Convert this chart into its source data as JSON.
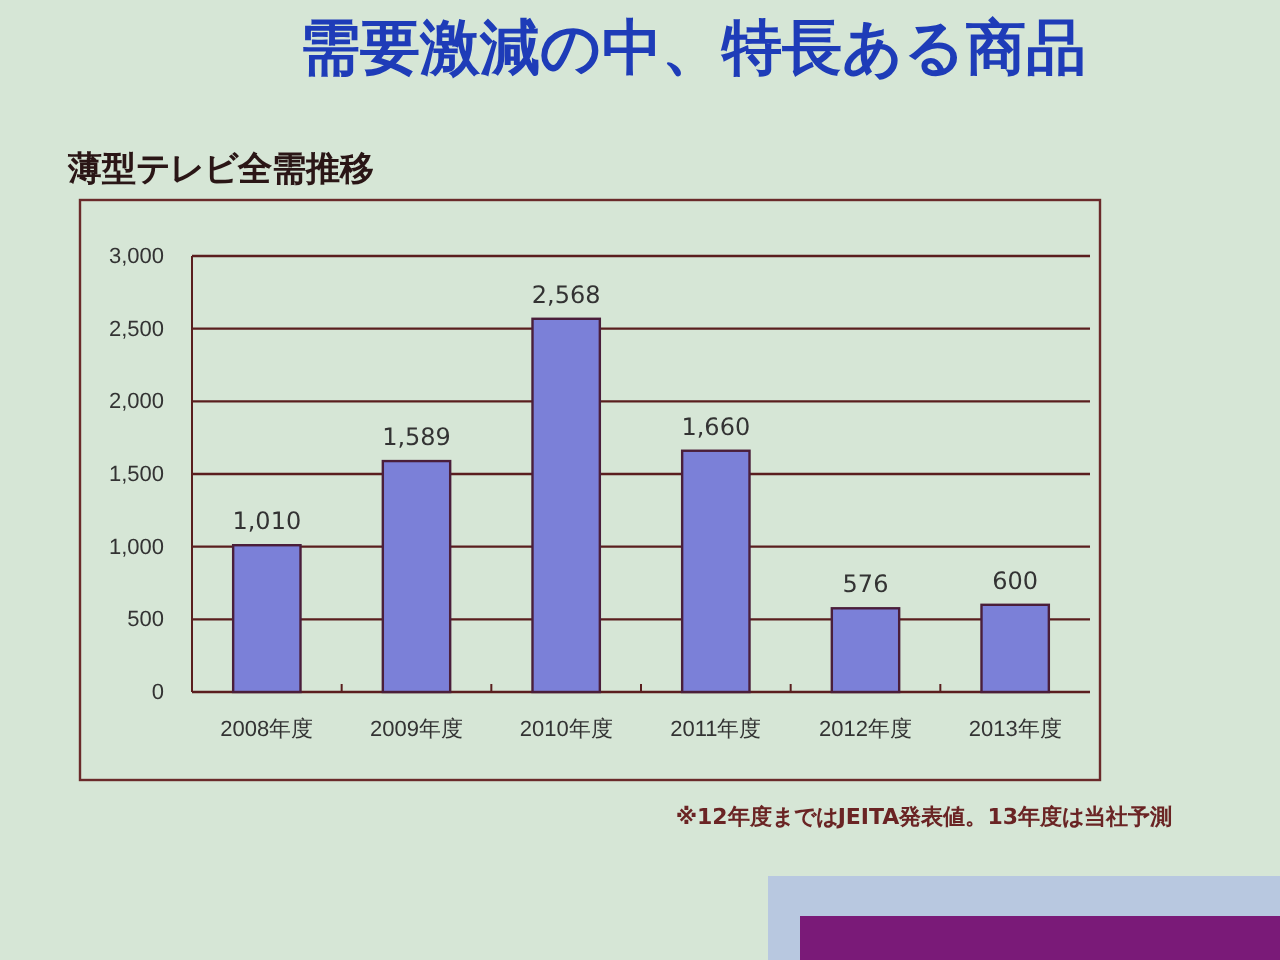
{
  "chart_data": {
    "type": "bar",
    "title": "需要激減の中、特長ある商品",
    "subtitle": "薄型テレビ全需推移",
    "categories": [
      "2008年度",
      "2009年度",
      "2010年度",
      "2011年度",
      "2012年度",
      "2013年度"
    ],
    "values": [
      1010,
      1589,
      2568,
      1660,
      576,
      600
    ],
    "color": "#7b80d8",
    "value_labels": [
      "1,010",
      "1,589",
      "2,568",
      "1,660",
      "576",
      "600"
    ],
    "ylim": [
      0,
      3000
    ],
    "yticks": [
      0,
      500,
      {
        "value": 1000,
        "label": "1,000"
      },
      {
        "value": 1500,
        "label": "1,500"
      },
      {
        "value": 2000,
        "label": "2,000"
      },
      {
        "value": 2500,
        "label": "2,500"
      },
      {
        "value": 3000,
        "label": "3,000"
      }
    ],
    "grid": "y",
    "annotations": [
      "※12年度まではJEITA発表値。13年度は当社予測"
    ]
  }
}
